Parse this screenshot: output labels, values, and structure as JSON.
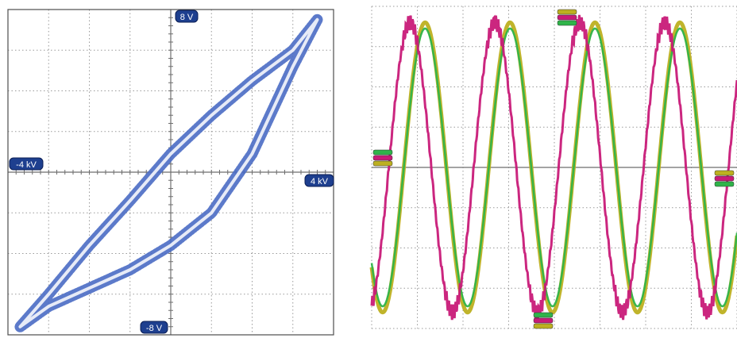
{
  "colors": {
    "hysteresis": "#4a6bc4",
    "voltage": "#bdb020",
    "voltage_ref": "#2fb44a",
    "current": "#c81a78",
    "grid": "#9a9a9a",
    "label_bg": "#1e3f8f"
  },
  "chart_data": [
    {
      "type": "scatter",
      "title": "",
      "xlabel": "",
      "ylabel": "",
      "x_unit": "kV",
      "y_unit": "V",
      "xlim": [
        -4,
        4
      ],
      "ylim": [
        -8,
        8
      ],
      "x_min_label": "-4 kV",
      "x_max_label": "4 kV",
      "y_max_label": "8 V",
      "y_min_label": "-8 V",
      "grid": true,
      "x_divisions": 8,
      "y_divisions": 8,
      "series": [
        {
          "points_upper": [
            [
              -3.7,
              -7.6
            ],
            [
              -3.0,
              -6.0
            ],
            [
              -2.0,
              -3.6
            ],
            [
              -1.0,
              -1.4
            ],
            [
              0.0,
              0.9
            ],
            [
              1.0,
              2.8
            ],
            [
              2.0,
              4.5
            ],
            [
              3.0,
              6.0
            ],
            [
              3.6,
              7.5
            ]
          ],
          "points_lower": [
            [
              3.6,
              7.5
            ],
            [
              3.0,
              5.2
            ],
            [
              2.0,
              0.9
            ],
            [
              1.0,
              -2.0
            ],
            [
              0.0,
              -3.6
            ],
            [
              -1.0,
              -4.8
            ],
            [
              -2.0,
              -5.7
            ],
            [
              -3.0,
              -6.6
            ],
            [
              -3.7,
              -7.6
            ]
          ]
        }
      ]
    },
    {
      "type": "line",
      "title": "",
      "xlabel": "",
      "ylabel": "",
      "grid": true,
      "x_divisions": 8,
      "y_divisions": 8,
      "xlim": [
        0,
        8
      ],
      "ylim": [
        -4,
        4
      ],
      "period_divisions": 1.86,
      "series": [
        {
          "amplitude_div": 3.6,
          "phase_div": 3.03
        },
        {
          "amplitude_div": 3.45,
          "phase_div": 3.03
        },
        {
          "amplitude_div": 3.6,
          "phase_div": 2.7
        }
      ]
    }
  ]
}
